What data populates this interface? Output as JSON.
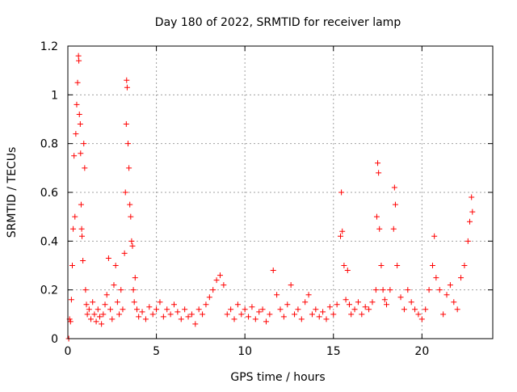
{
  "chart_data": {
    "type": "scatter",
    "title": "Day 180 of 2022, SRMTID for receiver lamp",
    "xlabel": "GPS time / hours",
    "ylabel": "SRMTID / TECUs",
    "xlim": [
      0,
      24
    ],
    "ylim": [
      0,
      1.2
    ],
    "xticks": [
      0,
      5,
      10,
      15,
      20
    ],
    "yticks": [
      0,
      0.2,
      0.4,
      0.6,
      0.8,
      1,
      1.2
    ],
    "xtick_labels": [
      "0",
      "5",
      "10",
      "15",
      "20"
    ],
    "ytick_labels": [
      "0",
      "0.2",
      "0.4",
      "0.6",
      "0.8",
      "1",
      "1.2"
    ],
    "grid": true,
    "marker": "+",
    "color": "#ff0000",
    "series": [
      {
        "name": "SRMTID",
        "points": [
          [
            0.05,
            0.0
          ],
          [
            0.1,
            0.08
          ],
          [
            0.15,
            0.07
          ],
          [
            0.2,
            0.16
          ],
          [
            0.25,
            0.3
          ],
          [
            0.3,
            0.45
          ],
          [
            0.35,
            0.75
          ],
          [
            0.4,
            0.5
          ],
          [
            0.45,
            0.84
          ],
          [
            0.5,
            0.96
          ],
          [
            0.55,
            1.05
          ],
          [
            0.6,
            1.16
          ],
          [
            0.62,
            1.14
          ],
          [
            0.65,
            0.92
          ],
          [
            0.7,
            0.88
          ],
          [
            0.72,
            0.76
          ],
          [
            0.75,
            0.55
          ],
          [
            0.78,
            0.45
          ],
          [
            0.8,
            0.42
          ],
          [
            0.85,
            0.32
          ],
          [
            0.9,
            0.8
          ],
          [
            0.95,
            0.7
          ],
          [
            1.0,
            0.2
          ],
          [
            1.05,
            0.14
          ],
          [
            1.1,
            0.1
          ],
          [
            1.2,
            0.12
          ],
          [
            1.3,
            0.08
          ],
          [
            1.4,
            0.15
          ],
          [
            1.5,
            0.1
          ],
          [
            1.6,
            0.07
          ],
          [
            1.7,
            0.12
          ],
          [
            1.8,
            0.09
          ],
          [
            1.9,
            0.06
          ],
          [
            2.0,
            0.1
          ],
          [
            2.1,
            0.14
          ],
          [
            2.2,
            0.18
          ],
          [
            2.3,
            0.33
          ],
          [
            2.4,
            0.12
          ],
          [
            2.5,
            0.08
          ],
          [
            2.6,
            0.22
          ],
          [
            2.7,
            0.3
          ],
          [
            2.8,
            0.15
          ],
          [
            2.9,
            0.1
          ],
          [
            3.0,
            0.2
          ],
          [
            3.1,
            0.12
          ],
          [
            3.2,
            0.35
          ],
          [
            3.25,
            0.6
          ],
          [
            3.3,
            0.88
          ],
          [
            3.32,
            1.06
          ],
          [
            3.35,
            1.03
          ],
          [
            3.4,
            0.8
          ],
          [
            3.45,
            0.7
          ],
          [
            3.5,
            0.55
          ],
          [
            3.55,
            0.5
          ],
          [
            3.6,
            0.4
          ],
          [
            3.65,
            0.38
          ],
          [
            3.7,
            0.2
          ],
          [
            3.75,
            0.15
          ],
          [
            3.8,
            0.25
          ],
          [
            3.9,
            0.12
          ],
          [
            4.0,
            0.09
          ],
          [
            4.2,
            0.11
          ],
          [
            4.4,
            0.08
          ],
          [
            4.6,
            0.13
          ],
          [
            4.8,
            0.1
          ],
          [
            5.0,
            0.12
          ],
          [
            5.2,
            0.15
          ],
          [
            5.4,
            0.09
          ],
          [
            5.6,
            0.12
          ],
          [
            5.8,
            0.1
          ],
          [
            6.0,
            0.14
          ],
          [
            6.2,
            0.11
          ],
          [
            6.4,
            0.08
          ],
          [
            6.6,
            0.12
          ],
          [
            6.8,
            0.09
          ],
          [
            7.0,
            0.1
          ],
          [
            7.2,
            0.06
          ],
          [
            7.4,
            0.12
          ],
          [
            7.6,
            0.1
          ],
          [
            7.8,
            0.14
          ],
          [
            8.0,
            0.17
          ],
          [
            8.2,
            0.2
          ],
          [
            8.4,
            0.24
          ],
          [
            8.6,
            0.26
          ],
          [
            8.8,
            0.22
          ],
          [
            9.0,
            0.1
          ],
          [
            9.2,
            0.12
          ],
          [
            9.4,
            0.08
          ],
          [
            9.6,
            0.14
          ],
          [
            9.8,
            0.1
          ],
          [
            10.0,
            0.12
          ],
          [
            10.2,
            0.09
          ],
          [
            10.4,
            0.13
          ],
          [
            10.6,
            0.08
          ],
          [
            10.8,
            0.11
          ],
          [
            11.0,
            0.12
          ],
          [
            11.2,
            0.07
          ],
          [
            11.4,
            0.1
          ],
          [
            11.6,
            0.28
          ],
          [
            11.8,
            0.18
          ],
          [
            12.0,
            0.12
          ],
          [
            12.2,
            0.09
          ],
          [
            12.4,
            0.14
          ],
          [
            12.6,
            0.22
          ],
          [
            12.8,
            0.1
          ],
          [
            13.0,
            0.12
          ],
          [
            13.2,
            0.08
          ],
          [
            13.4,
            0.15
          ],
          [
            13.6,
            0.18
          ],
          [
            13.8,
            0.1
          ],
          [
            14.0,
            0.12
          ],
          [
            14.2,
            0.09
          ],
          [
            14.4,
            0.11
          ],
          [
            14.6,
            0.08
          ],
          [
            14.8,
            0.13
          ],
          [
            15.0,
            0.1
          ],
          [
            15.2,
            0.14
          ],
          [
            15.4,
            0.42
          ],
          [
            15.45,
            0.6
          ],
          [
            15.5,
            0.44
          ],
          [
            15.6,
            0.3
          ],
          [
            15.7,
            0.16
          ],
          [
            15.8,
            0.28
          ],
          [
            15.9,
            0.14
          ],
          [
            16.0,
            0.1
          ],
          [
            16.2,
            0.12
          ],
          [
            16.4,
            0.15
          ],
          [
            16.6,
            0.1
          ],
          [
            16.8,
            0.13
          ],
          [
            17.0,
            0.12
          ],
          [
            17.2,
            0.15
          ],
          [
            17.4,
            0.2
          ],
          [
            17.45,
            0.5
          ],
          [
            17.5,
            0.72
          ],
          [
            17.55,
            0.68
          ],
          [
            17.6,
            0.45
          ],
          [
            17.7,
            0.3
          ],
          [
            17.8,
            0.2
          ],
          [
            17.9,
            0.16
          ],
          [
            18.0,
            0.14
          ],
          [
            18.2,
            0.2
          ],
          [
            18.4,
            0.45
          ],
          [
            18.45,
            0.62
          ],
          [
            18.5,
            0.55
          ],
          [
            18.6,
            0.3
          ],
          [
            18.8,
            0.17
          ],
          [
            19.0,
            0.12
          ],
          [
            19.2,
            0.2
          ],
          [
            19.4,
            0.15
          ],
          [
            19.6,
            0.12
          ],
          [
            19.8,
            0.1
          ],
          [
            20.0,
            0.08
          ],
          [
            20.2,
            0.12
          ],
          [
            20.4,
            0.2
          ],
          [
            20.6,
            0.3
          ],
          [
            20.7,
            0.42
          ],
          [
            20.8,
            0.25
          ],
          [
            21.0,
            0.2
          ],
          [
            21.2,
            0.1
          ],
          [
            21.4,
            0.18
          ],
          [
            21.6,
            0.22
          ],
          [
            21.8,
            0.15
          ],
          [
            22.0,
            0.12
          ],
          [
            22.2,
            0.25
          ],
          [
            22.4,
            0.3
          ],
          [
            22.6,
            0.4
          ],
          [
            22.7,
            0.48
          ],
          [
            22.8,
            0.58
          ],
          [
            22.85,
            0.52
          ]
        ]
      }
    ]
  }
}
